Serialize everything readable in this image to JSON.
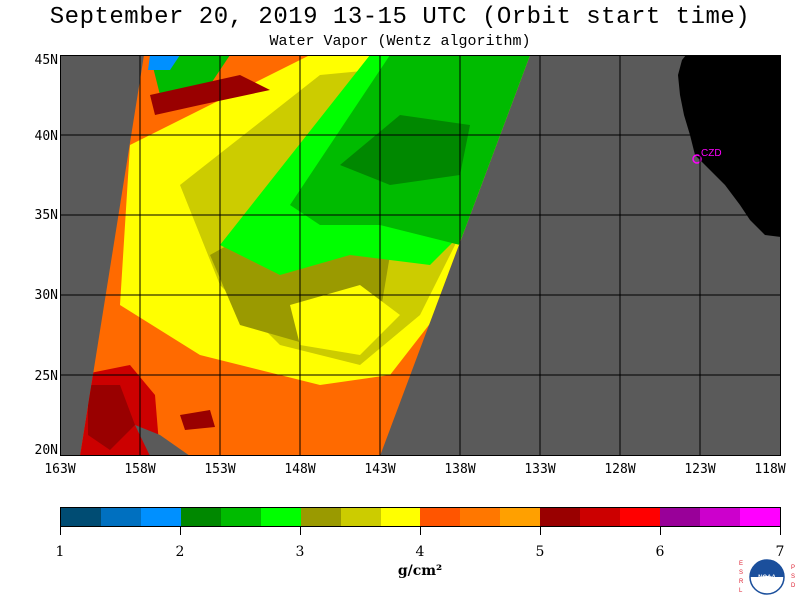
{
  "header": {
    "title": "September 20, 2019  13-15 UTC  (Orbit start time)",
    "subtitle": "Water Vapor (Wentz algorithm)"
  },
  "map": {
    "lat_labels": [
      "45N",
      "40N",
      "35N",
      "30N",
      "25N",
      "20N"
    ],
    "lon_labels": [
      "163W",
      "158W",
      "153W",
      "148W",
      "143W",
      "138W",
      "133W",
      "128W",
      "123W",
      "118W"
    ],
    "station_label": "CZD",
    "colors": {
      "no_data": "#5a5a5a",
      "land": "#000000",
      "grid": "#000000",
      "station": "#ff00ff"
    }
  },
  "colorbar": {
    "ticks": [
      "1",
      "2",
      "3",
      "4",
      "5",
      "6",
      "7"
    ],
    "unit": "g/cm²",
    "colors": [
      "#004c73",
      "#0070c0",
      "#0090ff",
      "#008800",
      "#00bb00",
      "#00ff00",
      "#9a9a00",
      "#cccc00",
      "#ffff00",
      "#ff5500",
      "#ff7700",
      "#ffa000",
      "#990000",
      "#cc0000",
      "#ff0000",
      "#990099",
      "#cc00cc",
      "#ff00ff"
    ]
  },
  "logo": {
    "left_letters": "ESRL",
    "right_letters": "PSD",
    "center_text": "NOAA"
  }
}
